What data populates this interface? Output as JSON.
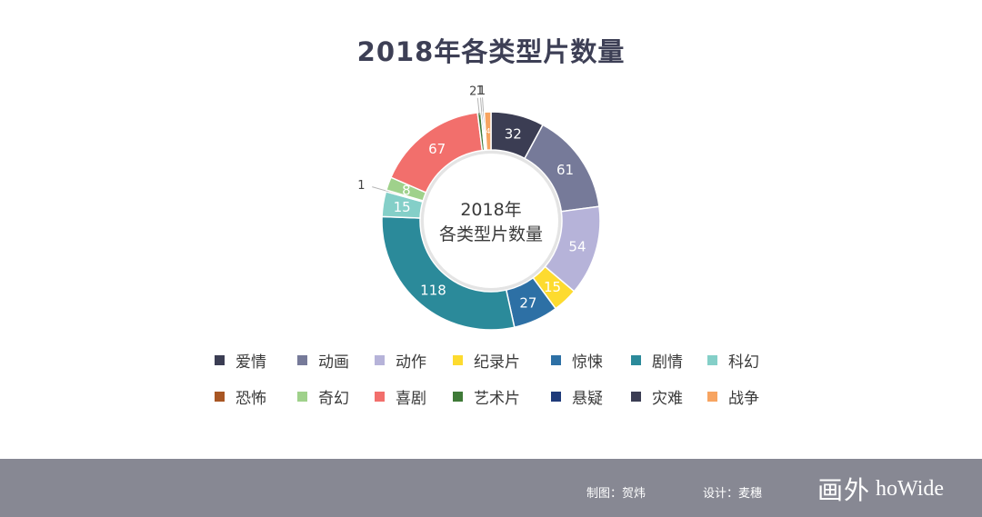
{
  "chart_data": {
    "type": "pie",
    "title": "2018年各类型片数量",
    "center_label": [
      "2018年",
      "各类型片数量"
    ],
    "categories": [
      "爱情",
      "动画",
      "动作",
      "纪录片",
      "惊悚",
      "剧情",
      "科幻",
      "恐怖",
      "奇幻",
      "喜剧",
      "艺术片",
      "悬疑",
      "灾难",
      "战争"
    ],
    "values": [
      32,
      61,
      54,
      15,
      27,
      118,
      15,
      1,
      8,
      67,
      2,
      1,
      1,
      4
    ],
    "value_labels": [
      "32",
      "61",
      "54",
      "15",
      "27",
      "118",
      "15",
      "1",
      "8",
      "67",
      "2",
      "1",
      "1",
      "4"
    ],
    "colors": [
      "#3b3d53",
      "#767a99",
      "#b6b3d9",
      "#fddb2f",
      "#2d70a5",
      "#2b8a9a",
      "#84cfc8",
      "#a85624",
      "#9fd18b",
      "#f26f6c",
      "#3f7a38",
      "#1f3b7a",
      "#3b3d53",
      "#f7a461"
    ],
    "legend_position": "bottom"
  },
  "footer": {
    "author": "制图：贺炜",
    "designer": "设计：麦穗",
    "logo_cn": "画外",
    "logo_en": "hoWide"
  }
}
